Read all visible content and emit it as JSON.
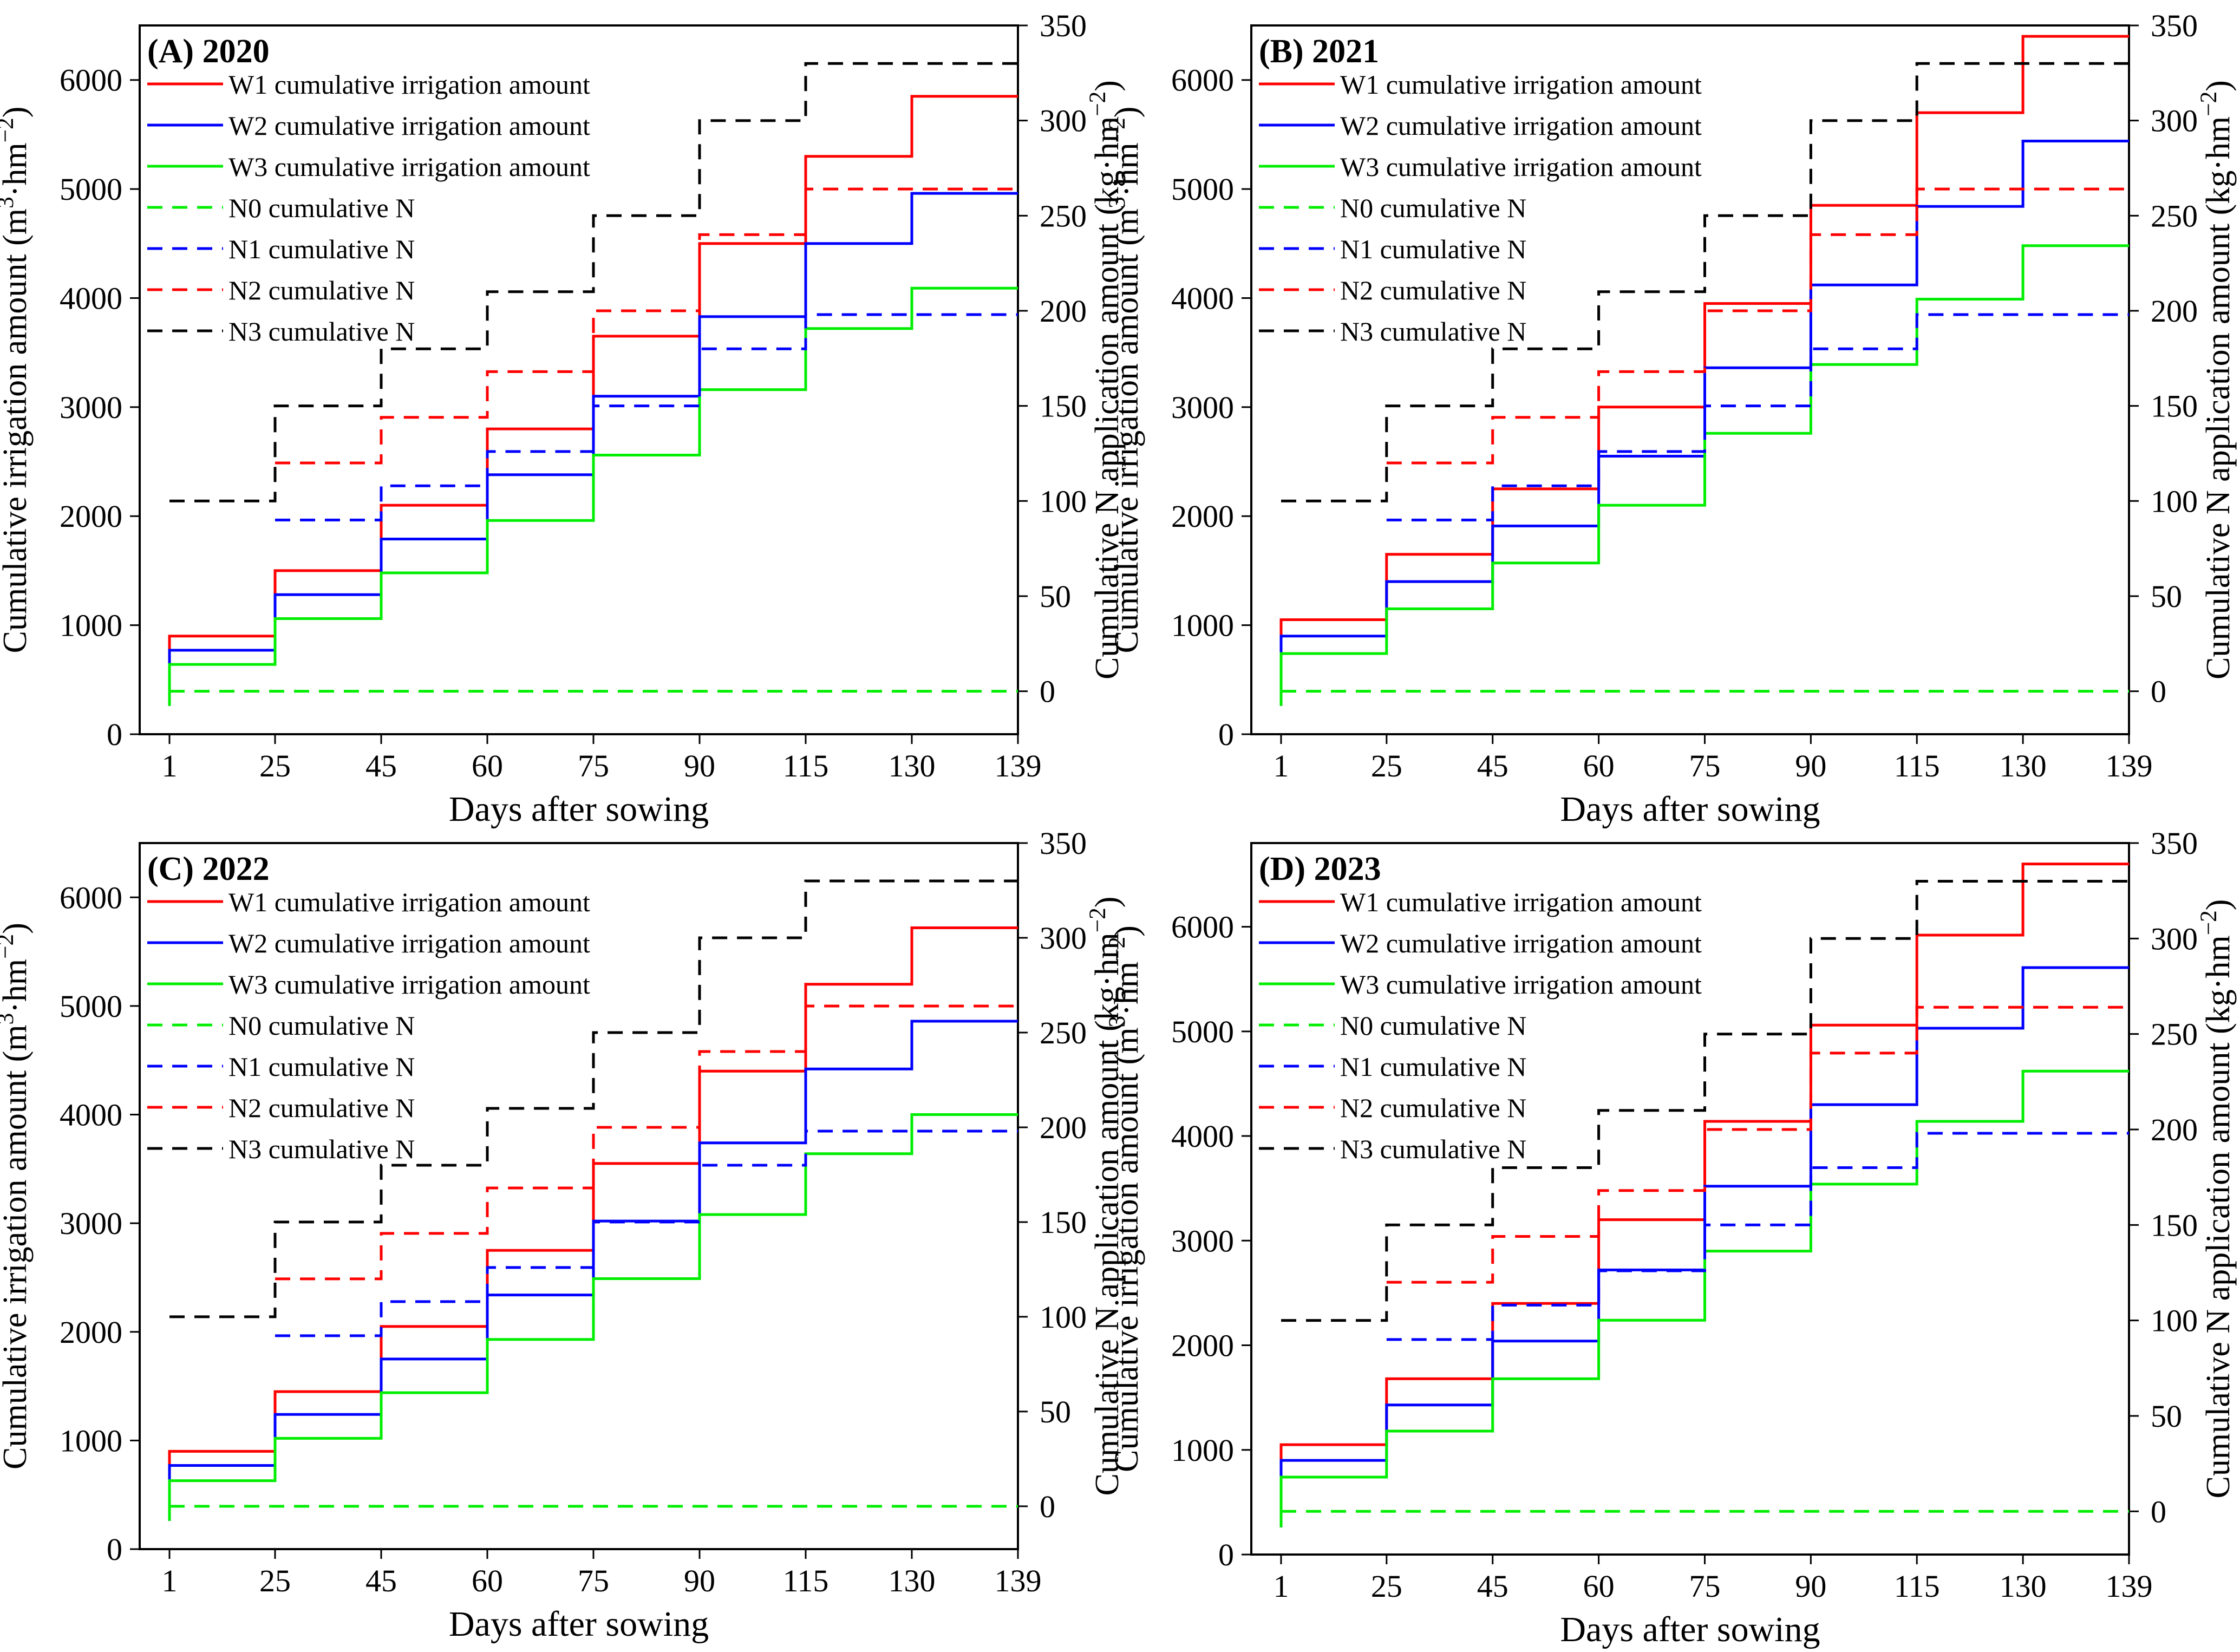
{
  "figure": {
    "panel_titles": [
      "(A) 2020",
      "(B) 2021",
      "(C) 2022",
      "(D) 2023"
    ]
  },
  "chart_data": [
    {
      "type": "line",
      "subtype": "step",
      "title": "(A) 2020",
      "xlabel": "Days after sowing",
      "ylabel": "Cumulative irrigation amount (m³·hm⁻²)",
      "y2label": "Cumulative N application amount (kg·hm⁻²)",
      "xticks": [
        1,
        25,
        45,
        60,
        75,
        90,
        115,
        130,
        139
      ],
      "ylim": [
        0,
        6500
      ],
      "yticks": [
        0,
        1000,
        2000,
        3000,
        4000,
        5000,
        6000
      ],
      "y2lim": [
        -22.6,
        350
      ],
      "y2ticks": [
        0,
        50,
        100,
        150,
        200,
        250,
        300,
        350
      ],
      "legend_position": "top-left",
      "series": [
        {
          "name": "W1 cumulative irrigation amount",
          "axis": "left",
          "style": "solid",
          "color": "#ff0000",
          "values": [
            900,
            1500,
            2100,
            2800,
            3650,
            4500,
            5300,
            5850,
            5850
          ]
        },
        {
          "name": "W2 cumulative irrigation amount",
          "axis": "left",
          "style": "solid",
          "color": "#0000ff",
          "values": [
            770,
            1280,
            1790,
            2380,
            3100,
            3830,
            4500,
            4960,
            4960
          ]
        },
        {
          "name": "W3 cumulative irrigation amount",
          "axis": "left",
          "style": "solid",
          "color": "#00ee00",
          "values": [
            640,
            1060,
            1480,
            1960,
            2560,
            3160,
            3720,
            4090,
            4090
          ]
        },
        {
          "name": "N0 cumulative N",
          "axis": "right",
          "style": "dashed",
          "color": "#00ee00",
          "values": [
            0,
            0,
            0,
            0,
            0,
            0,
            0,
            0,
            0
          ]
        },
        {
          "name": "N1 cumulative N",
          "axis": "right",
          "style": "dashed",
          "color": "#0000ff",
          "values": [
            null,
            90,
            108,
            126,
            150,
            180,
            198,
            198,
            198
          ]
        },
        {
          "name": "N2 cumulative N",
          "axis": "right",
          "style": "dashed",
          "color": "#ff0000",
          "values": [
            null,
            120,
            144,
            168,
            200,
            240,
            264,
            264,
            264
          ]
        },
        {
          "name": "N3 cumulative N",
          "axis": "right",
          "style": "dashed",
          "color": "#000000",
          "values": [
            100,
            150,
            180,
            210,
            250,
            300,
            330,
            330,
            330
          ]
        }
      ]
    },
    {
      "type": "line",
      "subtype": "step",
      "title": "(B) 2021",
      "xlabel": "Days after sowing",
      "ylabel": "Cumulative irrigation amount (m³·hm⁻²)",
      "y2label": "Cumulative N application amount (kg·hm⁻²)",
      "xticks": [
        1,
        25,
        45,
        60,
        75,
        90,
        115,
        130,
        139
      ],
      "ylim": [
        0,
        6500
      ],
      "yticks": [
        0,
        1000,
        2000,
        3000,
        4000,
        5000,
        6000
      ],
      "y2lim": [
        -22.6,
        350
      ],
      "y2ticks": [
        0,
        50,
        100,
        150,
        200,
        250,
        300,
        350
      ],
      "legend_position": "top-left",
      "series": [
        {
          "name": "W1 cumulative irrigation amount",
          "axis": "left",
          "style": "solid",
          "color": "#ff0000",
          "values": [
            1050,
            1650,
            2250,
            3000,
            3950,
            4850,
            5700,
            6400,
            6400
          ]
        },
        {
          "name": "W2 cumulative irrigation amount",
          "axis": "left",
          "style": "solid",
          "color": "#0000ff",
          "values": [
            900,
            1400,
            1910,
            2550,
            3360,
            4120,
            4840,
            5440,
            5440
          ]
        },
        {
          "name": "W3 cumulative irrigation amount",
          "axis": "left",
          "style": "solid",
          "color": "#00ee00",
          "values": [
            740,
            1150,
            1570,
            2100,
            2760,
            3390,
            3990,
            4480,
            4480
          ]
        },
        {
          "name": "N0 cumulative N",
          "axis": "right",
          "style": "dashed",
          "color": "#00ee00",
          "values": [
            0,
            0,
            0,
            0,
            0,
            0,
            0,
            0,
            0
          ]
        },
        {
          "name": "N1 cumulative N",
          "axis": "right",
          "style": "dashed",
          "color": "#0000ff",
          "values": [
            null,
            90,
            108,
            126,
            150,
            180,
            198,
            198,
            198
          ]
        },
        {
          "name": "N2 cumulative N",
          "axis": "right",
          "style": "dashed",
          "color": "#ff0000",
          "values": [
            null,
            120,
            144,
            168,
            200,
            240,
            264,
            264,
            264
          ]
        },
        {
          "name": "N3 cumulative N",
          "axis": "right",
          "style": "dashed",
          "color": "#000000",
          "values": [
            100,
            150,
            180,
            210,
            250,
            300,
            330,
            330,
            330
          ]
        }
      ]
    },
    {
      "type": "line",
      "subtype": "step",
      "title": "(C) 2022",
      "xlabel": "Days after sowing",
      "ylabel": "Cumulative irrigation amount (m³·hm⁻²)",
      "y2label": "Cumulative N application amount (kg·hm⁻²)",
      "xticks": [
        1,
        25,
        45,
        60,
        75,
        90,
        115,
        130,
        139
      ],
      "ylim": [
        0,
        6500
      ],
      "yticks": [
        0,
        1000,
        2000,
        3000,
        4000,
        5000,
        6000
      ],
      "y2lim": [
        -22.6,
        350
      ],
      "y2ticks": [
        0,
        50,
        100,
        150,
        200,
        250,
        300,
        350
      ],
      "legend_position": "top-left",
      "series": [
        {
          "name": "W1 cumulative irrigation amount",
          "axis": "left",
          "style": "solid",
          "color": "#ff0000",
          "values": [
            900,
            1450,
            2050,
            2750,
            3550,
            4400,
            5200,
            5720,
            5720
          ]
        },
        {
          "name": "W2 cumulative irrigation amount",
          "axis": "left",
          "style": "solid",
          "color": "#0000ff",
          "values": [
            770,
            1240,
            1750,
            2340,
            3020,
            3740,
            4420,
            4860,
            4860
          ]
        },
        {
          "name": "W3 cumulative irrigation amount",
          "axis": "left",
          "style": "solid",
          "color": "#00ee00",
          "values": [
            630,
            1020,
            1440,
            1930,
            2490,
            3080,
            3640,
            4000,
            4000
          ]
        },
        {
          "name": "N0 cumulative N",
          "axis": "right",
          "style": "dashed",
          "color": "#00ee00",
          "values": [
            0,
            0,
            0,
            0,
            0,
            0,
            0,
            0,
            0
          ]
        },
        {
          "name": "N1 cumulative N",
          "axis": "right",
          "style": "dashed",
          "color": "#0000ff",
          "values": [
            null,
            90,
            108,
            126,
            150,
            180,
            198,
            198,
            198
          ]
        },
        {
          "name": "N2 cumulative N",
          "axis": "right",
          "style": "dashed",
          "color": "#ff0000",
          "values": [
            null,
            120,
            144,
            168,
            200,
            240,
            264,
            264,
            264
          ]
        },
        {
          "name": "N3 cumulative N",
          "axis": "right",
          "style": "dashed",
          "color": "#000000",
          "values": [
            100,
            150,
            180,
            210,
            250,
            300,
            330,
            330,
            330
          ]
        }
      ]
    },
    {
      "type": "line",
      "subtype": "step",
      "title": "(D) 2023",
      "xlabel": "Days after sowing",
      "ylabel": "Cumulative irrigation amount (m³·hm⁻²)",
      "y2label": "Cumulative N application amount (kg·hm⁻²)",
      "xticks": [
        1,
        25,
        45,
        60,
        75,
        90,
        115,
        130,
        139
      ],
      "ylim": [
        0,
        6800
      ],
      "yticks": [
        0,
        1000,
        2000,
        3000,
        4000,
        5000,
        6000
      ],
      "y2lim": [
        -22.6,
        350
      ],
      "y2ticks": [
        0,
        50,
        100,
        150,
        200,
        250,
        300,
        350
      ],
      "legend_position": "top-left",
      "series": [
        {
          "name": "W1 cumulative irrigation amount",
          "axis": "left",
          "style": "solid",
          "color": "#ff0000",
          "values": [
            1050,
            1680,
            2400,
            3200,
            4140,
            5060,
            5920,
            6600,
            6600
          ]
        },
        {
          "name": "W2 cumulative irrigation amount",
          "axis": "left",
          "style": "solid",
          "color": "#0000ff",
          "values": [
            900,
            1430,
            2040,
            2720,
            3520,
            4300,
            5030,
            5610,
            5610
          ]
        },
        {
          "name": "W3 cumulative irrigation amount",
          "axis": "left",
          "style": "solid",
          "color": "#00ee00",
          "values": [
            740,
            1180,
            1680,
            2240,
            2900,
            3540,
            4140,
            4620,
            4620
          ]
        },
        {
          "name": "N0 cumulative N",
          "axis": "right",
          "style": "dashed",
          "color": "#00ee00",
          "values": [
            0,
            0,
            0,
            0,
            0,
            0,
            0,
            0,
            0
          ]
        },
        {
          "name": "N1 cumulative N",
          "axis": "right",
          "style": "dashed",
          "color": "#0000ff",
          "values": [
            null,
            90,
            108,
            126,
            150,
            180,
            198,
            198,
            198
          ]
        },
        {
          "name": "N2 cumulative N",
          "axis": "right",
          "style": "dashed",
          "color": "#ff0000",
          "values": [
            null,
            120,
            144,
            168,
            200,
            240,
            264,
            264,
            264
          ]
        },
        {
          "name": "N3 cumulative N",
          "axis": "right",
          "style": "dashed",
          "color": "#000000",
          "values": [
            100,
            150,
            180,
            210,
            250,
            300,
            330,
            330,
            330
          ]
        }
      ]
    }
  ]
}
